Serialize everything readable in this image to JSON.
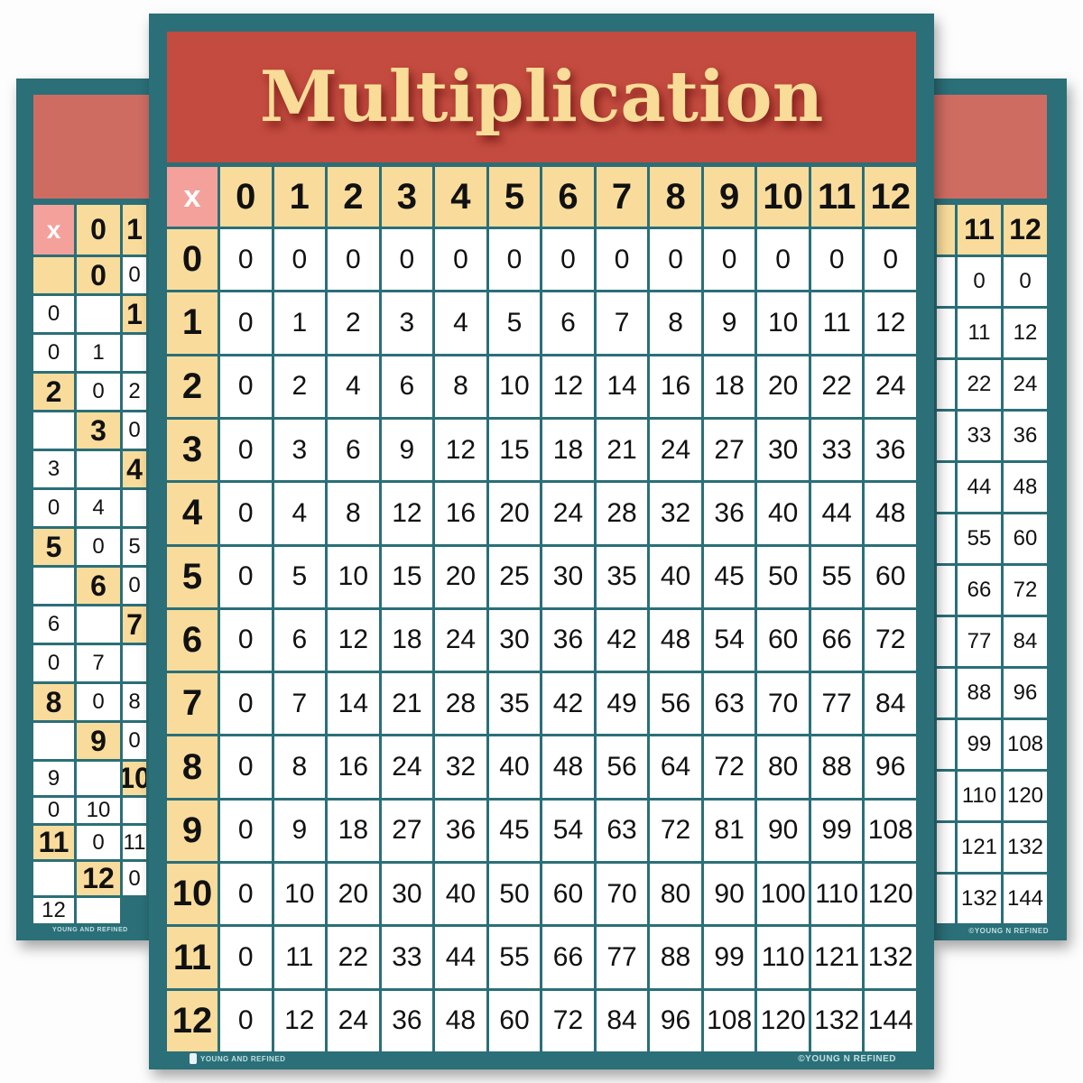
{
  "title": "Multiplication",
  "corner_label": "x",
  "column_headers": [
    "0",
    "1",
    "2",
    "3",
    "4",
    "5",
    "6",
    "7",
    "8",
    "9",
    "10",
    "11",
    "12"
  ],
  "row_headers": [
    "0",
    "1",
    "2",
    "3",
    "4",
    "5",
    "6",
    "7",
    "8",
    "9",
    "10",
    "11",
    "12"
  ],
  "rows": [
    [
      "0",
      "0",
      "0",
      "0",
      "0",
      "0",
      "0",
      "0",
      "0",
      "0",
      "0",
      "0",
      "0"
    ],
    [
      "0",
      "1",
      "2",
      "3",
      "4",
      "5",
      "6",
      "7",
      "8",
      "9",
      "10",
      "11",
      "12"
    ],
    [
      "0",
      "2",
      "4",
      "6",
      "8",
      "10",
      "12",
      "14",
      "16",
      "18",
      "20",
      "22",
      "24"
    ],
    [
      "0",
      "3",
      "6",
      "9",
      "12",
      "15",
      "18",
      "21",
      "24",
      "27",
      "30",
      "33",
      "36"
    ],
    [
      "0",
      "4",
      "8",
      "12",
      "16",
      "20",
      "24",
      "28",
      "32",
      "36",
      "40",
      "44",
      "48"
    ],
    [
      "0",
      "5",
      "10",
      "15",
      "20",
      "25",
      "30",
      "35",
      "40",
      "45",
      "50",
      "55",
      "60"
    ],
    [
      "0",
      "6",
      "12",
      "18",
      "24",
      "30",
      "36",
      "42",
      "48",
      "54",
      "60",
      "66",
      "72"
    ],
    [
      "0",
      "7",
      "14",
      "21",
      "28",
      "35",
      "42",
      "49",
      "56",
      "63",
      "70",
      "77",
      "84"
    ],
    [
      "0",
      "8",
      "16",
      "24",
      "32",
      "40",
      "48",
      "56",
      "64",
      "72",
      "80",
      "88",
      "96"
    ],
    [
      "0",
      "9",
      "18",
      "27",
      "36",
      "45",
      "54",
      "63",
      "72",
      "81",
      "90",
      "99",
      "108"
    ],
    [
      "0",
      "10",
      "20",
      "30",
      "40",
      "50",
      "60",
      "70",
      "80",
      "90",
      "100",
      "110",
      "120"
    ],
    [
      "0",
      "11",
      "22",
      "33",
      "44",
      "55",
      "66",
      "77",
      "88",
      "99",
      "110",
      "121",
      "132"
    ],
    [
      "0",
      "12",
      "24",
      "36",
      "48",
      "60",
      "72",
      "84",
      "96",
      "108",
      "120",
      "132",
      "144"
    ]
  ],
  "footer": {
    "brand": "YOUNG AND REFINED",
    "copyright": "©YOUNG N REFINED"
  },
  "colors": {
    "frame": "#2b6f78",
    "header": "#c44b3f",
    "title": "#f8dc98",
    "label_cell": "#f9dc9b",
    "corner": "#f4a19c"
  }
}
